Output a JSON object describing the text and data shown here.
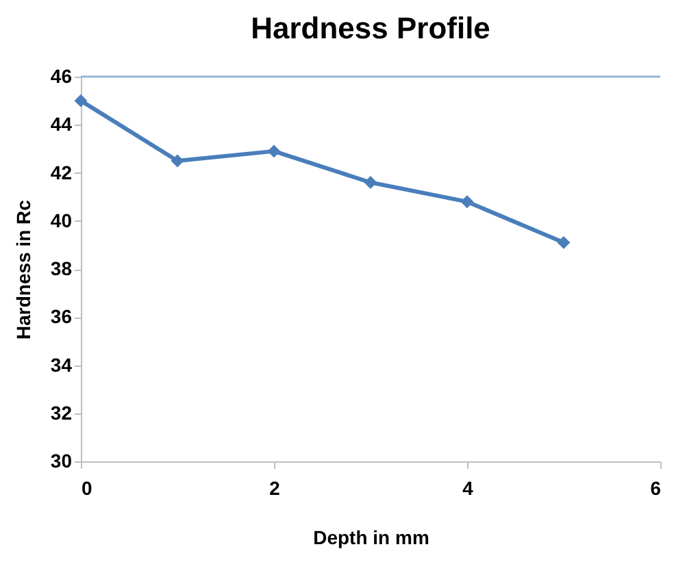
{
  "chart_data": {
    "type": "line",
    "title": "Hardness Profile",
    "xlabel": "Depth in mm",
    "ylabel": "Hardness in Rc",
    "x": [
      0,
      1,
      2,
      3,
      4,
      5
    ],
    "series": [
      {
        "color": "#4a7ebb",
        "values": [
          45,
          42.5,
          42.9,
          41.6,
          40.8,
          39.1
        ]
      }
    ],
    "xlim": [
      0,
      6
    ],
    "xticks": [
      0,
      2,
      4,
      6
    ],
    "ylim": [
      30,
      46
    ],
    "yticks": [
      30,
      32,
      34,
      36,
      38,
      40,
      42,
      44,
      46
    ],
    "ref_lines": [
      {
        "axis": "y",
        "value": 46,
        "color": "#95b3d7"
      }
    ],
    "marker": "diamond",
    "line_style": "solid",
    "grid": false,
    "legend": false
  }
}
